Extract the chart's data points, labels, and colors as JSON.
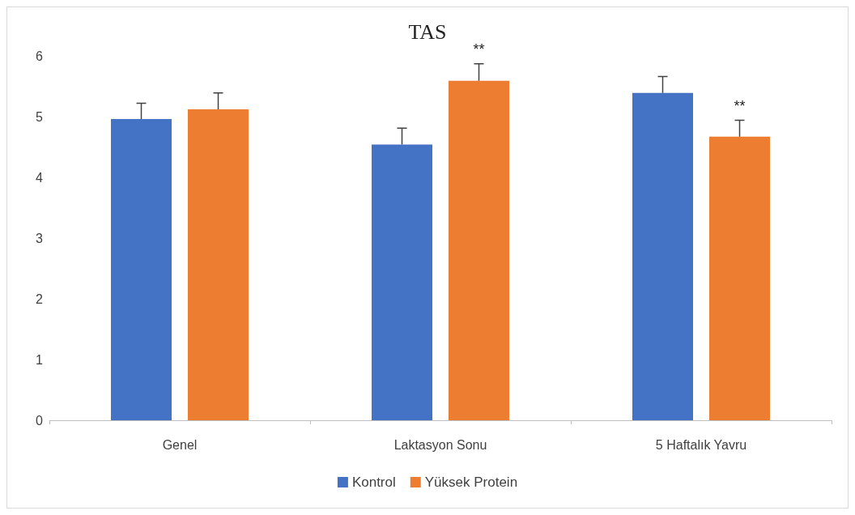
{
  "chart_data": {
    "type": "bar",
    "title": "TAS",
    "categories": [
      "Genel",
      "Laktasyon Sonu",
      "5 Haftalık Yavru"
    ],
    "series": [
      {
        "name": "Kontrol",
        "color": "#4472c4",
        "values": [
          4.96,
          4.54,
          5.39
        ],
        "errors": [
          [
            4.96,
            5.22
          ],
          [
            4.54,
            4.81
          ],
          [
            5.39,
            5.66
          ]
        ]
      },
      {
        "name": "Yüksek Protein",
        "color": "#ed7d31",
        "values": [
          5.12,
          5.59,
          4.67
        ],
        "value_labels": [
          null,
          "**",
          "**"
        ],
        "errors": [
          [
            5.12,
            5.39
          ],
          [
            5.59,
            5.87
          ],
          [
            4.67,
            4.94
          ]
        ]
      }
    ],
    "ylim": [
      0,
      6
    ],
    "yticks": [
      0,
      1,
      2,
      3,
      4,
      5,
      6
    ],
    "grid": false,
    "legend": "bottom"
  }
}
